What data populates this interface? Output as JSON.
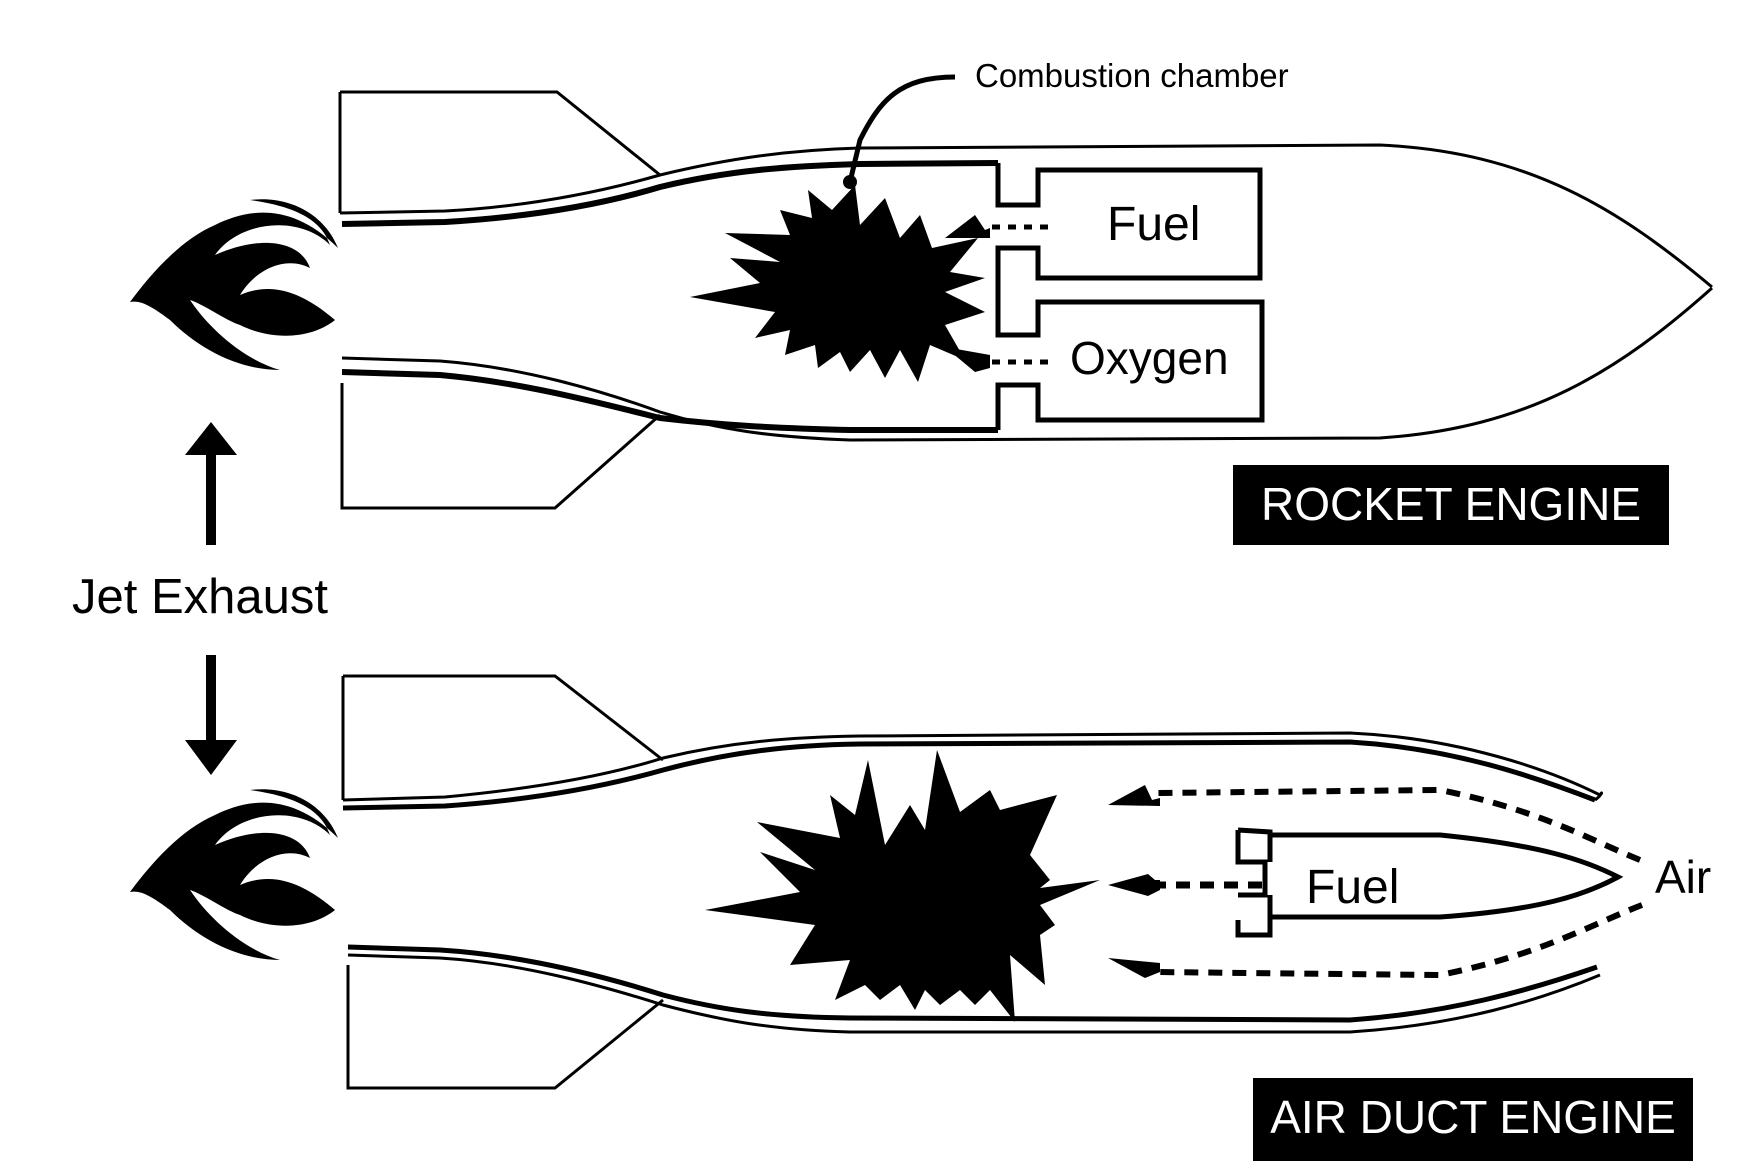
{
  "labels": {
    "combustion_chamber": "Combustion chamber",
    "jet_exhaust": "Jet Exhaust"
  },
  "rocket_engine": {
    "title": "ROCKET ENGINE",
    "tanks": {
      "fuel": "Fuel",
      "oxygen": "Oxygen"
    }
  },
  "air_duct_engine": {
    "title": "AIR DUCT ENGINE",
    "fuel_tank": "Fuel",
    "intake": "Air"
  },
  "colors": {
    "ink": "#000000",
    "paper": "#ffffff"
  },
  "icons": [
    "flame-icon",
    "explosion-icon",
    "arrow-up-icon",
    "arrow-down-icon",
    "arrowhead-icon"
  ]
}
